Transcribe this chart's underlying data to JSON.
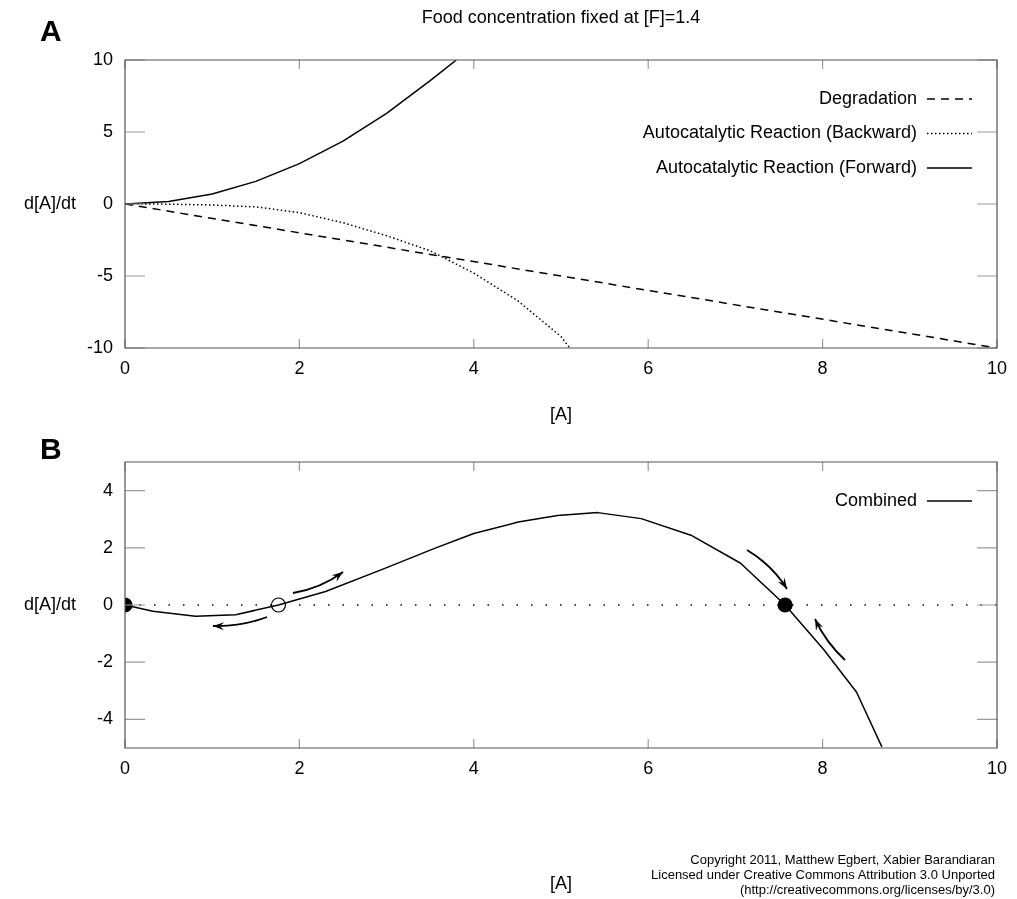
{
  "chart_data": [
    {
      "type": "line",
      "title": "Food concentration fixed at [F]=1.4",
      "xlabel": "[A]",
      "ylabel": "d[A]/dt",
      "annotations": [
        "A"
      ],
      "xlim": [
        0,
        10
      ],
      "xticks": [
        0,
        2,
        4,
        6,
        8,
        10
      ],
      "ylim": [
        -10,
        10
      ],
      "yticks": [
        -10,
        -5,
        0,
        5,
        10
      ],
      "grid": false,
      "legend": "top right",
      "marker": "none",
      "series": [
        {
          "name": "Degradation",
          "color": "#000000",
          "line_style": "dashed",
          "x": [
            0,
            10
          ],
          "values": [
            0,
            -10
          ]
        },
        {
          "name": "Autocatalytic Reaction (Backward)",
          "color": "#000000",
          "line_style": "dotted",
          "x": [
            0,
            0.5,
            1,
            1.5,
            2,
            2.5,
            3,
            3.5,
            4,
            4.5,
            5,
            5.1
          ],
          "values": [
            0,
            -0.01,
            -0.07,
            -0.2,
            -0.6,
            -1.3,
            -2.2,
            -3.25,
            -4.8,
            -6.7,
            -9.2,
            -10
          ]
        },
        {
          "name": "Autocatalytic Reaction (Forward)",
          "color": "#000000",
          "line_style": "solid",
          "x": [
            0,
            0.5,
            1,
            1.5,
            2,
            2.5,
            3,
            3.5,
            3.8
          ],
          "values": [
            0,
            0.18,
            0.7,
            1.57,
            2.8,
            4.37,
            6.3,
            8.57,
            10
          ]
        }
      ]
    },
    {
      "type": "line",
      "xlabel": "[A]",
      "ylabel": "d[A]/dt",
      "annotations": [
        "B",
        "Copyright 2011, Matthew Egbert, Xabier Barandiaran",
        "Licensed under Creative Commons Attribution 3.0 Unported",
        "(http://creativecommons.org/licenses/by/3.0)"
      ],
      "xlim": [
        0,
        10
      ],
      "xticks": [
        0,
        2,
        4,
        6,
        8,
        10
      ],
      "ylim": [
        -5,
        5
      ],
      "yticks": [
        -4,
        -2,
        0,
        2,
        4
      ],
      "grid": false,
      "legend": "top right",
      "marker": "none",
      "ref_lines": [
        {
          "axis": "y",
          "value": 0,
          "color": "#000000",
          "line_style": "dotted"
        }
      ],
      "series": [
        {
          "name": "Combined",
          "color": "#000000",
          "line_style": "solid",
          "x": [
            0,
            0.32,
            0.81,
            1.27,
            1.76,
            2.3,
            2.98,
            3.55,
            4,
            4.51,
            4.96,
            5.42,
            5.92,
            6.49,
            7.06,
            7.57,
            8.01,
            8.39,
            8.68
          ],
          "values": [
            0,
            -0.22,
            -0.39,
            -0.34,
            0,
            0.47,
            1.28,
            1.98,
            2.5,
            2.9,
            3.13,
            3.23,
            3.02,
            2.44,
            1.46,
            0,
            -1.55,
            -3.05,
            -4.96
          ]
        },
        {
          "type": "scatter",
          "color": "#000000",
          "marker": "circle",
          "x": [
            0,
            7.57
          ],
          "values": [
            0,
            0
          ]
        },
        {
          "type": "scatter",
          "color": "#ffffff",
          "marker": "circle",
          "x": [
            1.76
          ],
          "values": [
            0
          ]
        }
      ]
    }
  ]
}
